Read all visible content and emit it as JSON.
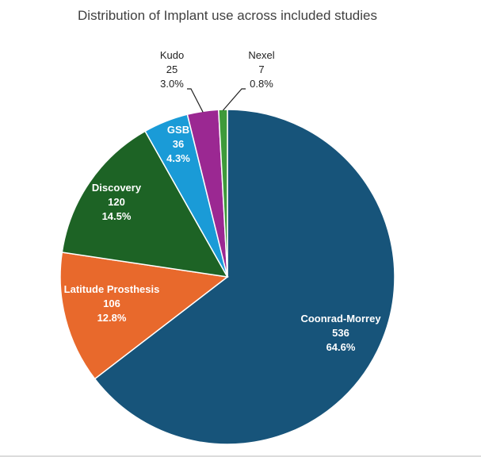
{
  "chart_data": {
    "type": "pie",
    "title": "Distribution of Implant use across included studies",
    "slices": [
      {
        "name": "Coonrad-Morrey",
        "value": 536,
        "percent": "64.6%",
        "color": "#17547A",
        "label_pos": "inside"
      },
      {
        "name": "Latitude Prosthesis",
        "value": 106,
        "percent": "12.8%",
        "color": "#E8692C",
        "label_pos": "inside"
      },
      {
        "name": "Discovery",
        "value": 120,
        "percent": "14.5%",
        "color": "#1D6325",
        "label_pos": "inside"
      },
      {
        "name": "GSB",
        "value": 36,
        "percent": "4.3%",
        "color": "#1A9BD7",
        "label_pos": "inside"
      },
      {
        "name": "Kudo",
        "value": 25,
        "percent": "3.0%",
        "color": "#9B2892",
        "label_pos": "outside-left"
      },
      {
        "name": "Nexel",
        "value": 7,
        "percent": "0.8%",
        "color": "#3E9A3A",
        "label_pos": "outside-right"
      }
    ]
  }
}
